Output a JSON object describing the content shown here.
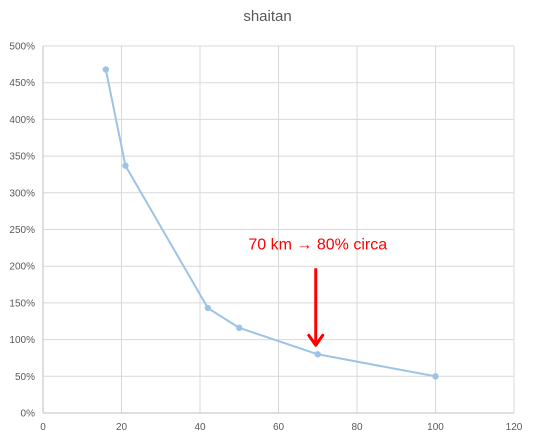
{
  "chart_data": {
    "type": "line",
    "title": "shaitan",
    "xlabel": "",
    "ylabel": "",
    "xlim": [
      0,
      120
    ],
    "ylim": [
      0,
      5
    ],
    "x_ticks": [
      0,
      20,
      40,
      60,
      80,
      100,
      120
    ],
    "y_ticks": [
      0,
      0.5,
      1,
      1.5,
      2,
      2.5,
      3,
      3.5,
      4,
      4.5,
      5
    ],
    "x_tick_labels": [
      "0",
      "20",
      "40",
      "60",
      "80",
      "100",
      "120"
    ],
    "y_tick_labels": [
      "0%",
      "50%",
      "100%",
      "150%",
      "200%",
      "250%",
      "300%",
      "350%",
      "400%",
      "450%",
      "500%"
    ],
    "grid": true,
    "legend": "none",
    "series": [
      {
        "color": "#9dc3e6",
        "points": [
          {
            "x": 16,
            "y": 4.68
          },
          {
            "x": 21,
            "y": 3.37
          },
          {
            "x": 42,
            "y": 1.43
          },
          {
            "x": 50,
            "y": 1.16
          },
          {
            "x": 70,
            "y": 0.8
          },
          {
            "x": 100,
            "y": 0.5
          }
        ]
      }
    ],
    "annotation": {
      "text": "70 km → 80% circa",
      "x": 70,
      "y": 0.8,
      "color": "#ff0000"
    }
  }
}
